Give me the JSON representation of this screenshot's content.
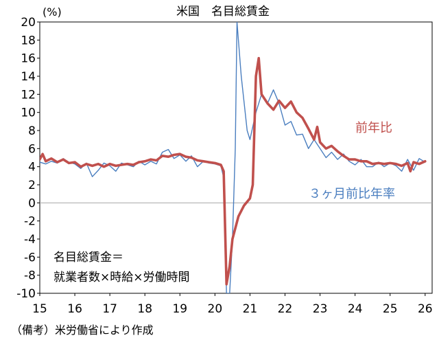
{
  "chart_data": {
    "type": "line",
    "title": "米国　名目総賃金",
    "y_unit": "(%)",
    "ylim": [
      -10,
      20
    ],
    "y_ticks": [
      20,
      18,
      16,
      14,
      12,
      10,
      8,
      6,
      4,
      2,
      0,
      -2,
      -4,
      -6,
      -8,
      -10
    ],
    "xlim": [
      2015.0,
      2026.2
    ],
    "x_ticks": [
      {
        "x": 2015,
        "label": "15"
      },
      {
        "x": 2016,
        "label": "16"
      },
      {
        "x": 2017,
        "label": "17"
      },
      {
        "x": 2018,
        "label": "18"
      },
      {
        "x": 2019,
        "label": "19"
      },
      {
        "x": 2020,
        "label": "20"
      },
      {
        "x": 2021,
        "label": "21"
      },
      {
        "x": 2022,
        "label": "22"
      },
      {
        "x": 2023,
        "label": "23"
      },
      {
        "x": 2024,
        "label": "24"
      },
      {
        "x": 2025,
        "label": "25"
      },
      {
        "x": 2026,
        "label": "26"
      }
    ],
    "zero_line": true,
    "grid": false,
    "series": [
      {
        "name": "3ヶ月前比年率",
        "color": "#4a7ebf",
        "points": [
          [
            2015.0,
            4.5
          ],
          [
            2015.17,
            4.3
          ],
          [
            2015.33,
            4.6
          ],
          [
            2015.5,
            4.4
          ],
          [
            2015.67,
            4.9
          ],
          [
            2015.83,
            4.5
          ],
          [
            2016.0,
            4.3
          ],
          [
            2016.17,
            3.8
          ],
          [
            2016.33,
            4.4
          ],
          [
            2016.5,
            2.9
          ],
          [
            2016.67,
            3.6
          ],
          [
            2016.83,
            4.4
          ],
          [
            2017.0,
            4.1
          ],
          [
            2017.17,
            3.5
          ],
          [
            2017.33,
            4.4
          ],
          [
            2017.5,
            4.2
          ],
          [
            2017.67,
            4.0
          ],
          [
            2017.83,
            4.6
          ],
          [
            2018.0,
            4.2
          ],
          [
            2018.17,
            4.6
          ],
          [
            2018.33,
            4.3
          ],
          [
            2018.5,
            5.6
          ],
          [
            2018.67,
            5.9
          ],
          [
            2018.83,
            4.9
          ],
          [
            2019.0,
            5.3
          ],
          [
            2019.17,
            4.6
          ],
          [
            2019.33,
            5.2
          ],
          [
            2019.5,
            4.0
          ],
          [
            2019.67,
            4.6
          ],
          [
            2019.83,
            4.4
          ],
          [
            2020.0,
            4.3
          ],
          [
            2020.17,
            4.1
          ],
          [
            2020.25,
            2.8
          ],
          [
            2020.33,
            -10.0
          ],
          [
            2020.42,
            -10.0
          ],
          [
            2020.5,
            -4.0
          ],
          [
            2020.58,
            6.0
          ],
          [
            2020.63,
            20.0
          ],
          [
            2020.75,
            14.0
          ],
          [
            2020.92,
            8.0
          ],
          [
            2021.0,
            7.0
          ],
          [
            2021.17,
            10.0
          ],
          [
            2021.33,
            12.0
          ],
          [
            2021.5,
            11.0
          ],
          [
            2021.67,
            12.5
          ],
          [
            2021.83,
            11.0
          ],
          [
            2022.0,
            8.6
          ],
          [
            2022.17,
            9.0
          ],
          [
            2022.33,
            7.5
          ],
          [
            2022.5,
            7.6
          ],
          [
            2022.67,
            6.0
          ],
          [
            2022.83,
            7.0
          ],
          [
            2023.0,
            6.0
          ],
          [
            2023.17,
            5.0
          ],
          [
            2023.33,
            5.6
          ],
          [
            2023.5,
            4.8
          ],
          [
            2023.67,
            5.4
          ],
          [
            2023.83,
            4.6
          ],
          [
            2024.0,
            4.2
          ],
          [
            2024.17,
            4.8
          ],
          [
            2024.33,
            4.0
          ],
          [
            2024.5,
            4.0
          ],
          [
            2024.67,
            4.5
          ],
          [
            2024.83,
            4.0
          ],
          [
            2025.0,
            4.4
          ],
          [
            2025.17,
            4.1
          ],
          [
            2025.33,
            3.5
          ],
          [
            2025.5,
            4.8
          ],
          [
            2025.67,
            3.6
          ],
          [
            2025.83,
            4.9
          ],
          [
            2026.0,
            4.5
          ]
        ]
      },
      {
        "name": "前年比",
        "color": "#c0504d",
        "points": [
          [
            2015.0,
            4.8
          ],
          [
            2015.08,
            5.4
          ],
          [
            2015.17,
            4.6
          ],
          [
            2015.33,
            4.9
          ],
          [
            2015.5,
            4.5
          ],
          [
            2015.67,
            4.8
          ],
          [
            2015.83,
            4.4
          ],
          [
            2016.0,
            4.5
          ],
          [
            2016.17,
            4.0
          ],
          [
            2016.33,
            4.3
          ],
          [
            2016.5,
            4.1
          ],
          [
            2016.67,
            4.3
          ],
          [
            2016.83,
            4.0
          ],
          [
            2017.0,
            4.3
          ],
          [
            2017.17,
            4.1
          ],
          [
            2017.33,
            4.2
          ],
          [
            2017.5,
            4.3
          ],
          [
            2017.67,
            4.2
          ],
          [
            2017.83,
            4.5
          ],
          [
            2018.0,
            4.6
          ],
          [
            2018.17,
            4.8
          ],
          [
            2018.33,
            4.7
          ],
          [
            2018.5,
            5.2
          ],
          [
            2018.67,
            5.1
          ],
          [
            2018.83,
            5.3
          ],
          [
            2019.0,
            5.4
          ],
          [
            2019.17,
            5.1
          ],
          [
            2019.33,
            5.0
          ],
          [
            2019.5,
            4.7
          ],
          [
            2019.67,
            4.6
          ],
          [
            2019.83,
            4.5
          ],
          [
            2020.0,
            4.4
          ],
          [
            2020.17,
            4.2
          ],
          [
            2020.25,
            3.5
          ],
          [
            2020.33,
            -9.0
          ],
          [
            2020.42,
            -7.0
          ],
          [
            2020.5,
            -4.0
          ],
          [
            2020.67,
            -1.5
          ],
          [
            2020.83,
            -0.3
          ],
          [
            2021.0,
            0.5
          ],
          [
            2021.08,
            2.0
          ],
          [
            2021.17,
            14.0
          ],
          [
            2021.25,
            16.0
          ],
          [
            2021.33,
            12.0
          ],
          [
            2021.5,
            11.0
          ],
          [
            2021.67,
            10.3
          ],
          [
            2021.83,
            11.3
          ],
          [
            2022.0,
            10.5
          ],
          [
            2022.17,
            11.2
          ],
          [
            2022.33,
            10.0
          ],
          [
            2022.5,
            9.4
          ],
          [
            2022.67,
            8.2
          ],
          [
            2022.83,
            7.0
          ],
          [
            2022.92,
            8.4
          ],
          [
            2023.0,
            6.7
          ],
          [
            2023.17,
            6.0
          ],
          [
            2023.33,
            6.3
          ],
          [
            2023.5,
            5.7
          ],
          [
            2023.67,
            5.2
          ],
          [
            2023.83,
            4.8
          ],
          [
            2024.0,
            4.8
          ],
          [
            2024.17,
            4.6
          ],
          [
            2024.33,
            4.6
          ],
          [
            2024.5,
            4.3
          ],
          [
            2024.67,
            4.4
          ],
          [
            2024.83,
            4.3
          ],
          [
            2025.0,
            4.4
          ],
          [
            2025.17,
            4.3
          ],
          [
            2025.33,
            4.1
          ],
          [
            2025.5,
            4.4
          ],
          [
            2025.58,
            3.5
          ],
          [
            2025.67,
            4.5
          ],
          [
            2025.83,
            4.3
          ],
          [
            2026.0,
            4.6
          ]
        ]
      }
    ],
    "annotations": {
      "series_label_yoy": "前年比",
      "series_label_3m": "３ヶ月前比年率",
      "formula_line1": "名目総賃金＝",
      "formula_line2": "就業者数×時給×労働時間"
    },
    "source": "（備考）米労働省により作成"
  }
}
